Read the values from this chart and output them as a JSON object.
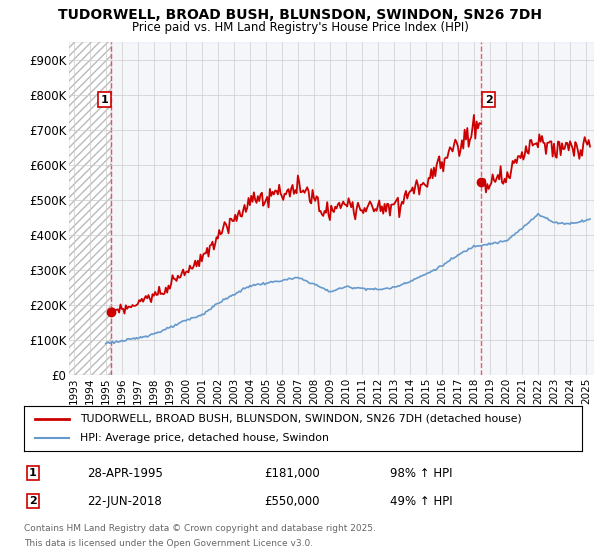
{
  "title1": "TUDORWELL, BROAD BUSH, BLUNSDON, SWINDON, SN26 7DH",
  "title2": "Price paid vs. HM Land Registry's House Price Index (HPI)",
  "ylim": [
    0,
    950000
  ],
  "yticks": [
    0,
    100000,
    200000,
    300000,
    400000,
    500000,
    600000,
    700000,
    800000,
    900000
  ],
  "ytick_labels": [
    "£0",
    "£100K",
    "£200K",
    "£300K",
    "£400K",
    "£500K",
    "£600K",
    "£700K",
    "£800K",
    "£900K"
  ],
  "xlim_start": 1992.7,
  "xlim_end": 2025.5,
  "xticks": [
    1993,
    1994,
    1995,
    1996,
    1997,
    1998,
    1999,
    2000,
    2001,
    2002,
    2003,
    2004,
    2005,
    2006,
    2007,
    2008,
    2009,
    2010,
    2011,
    2012,
    2013,
    2014,
    2015,
    2016,
    2017,
    2018,
    2019,
    2020,
    2021,
    2022,
    2023,
    2024,
    2025
  ],
  "marker1_x": 1995.32,
  "marker1_y": 181000,
  "marker2_x": 2018.47,
  "marker2_y": 550000,
  "house_color": "#cc0000",
  "hpi_color": "#6699cc",
  "vline_color": "#ee3333",
  "grid_color": "#cccccc",
  "legend_label1": "TUDORWELL, BROAD BUSH, BLUNSDON, SWINDON, SN26 7DH (detached house)",
  "legend_label2": "HPI: Average price, detached house, Swindon",
  "marker1_date": "28-APR-1995",
  "marker1_price": "£181,000",
  "marker1_hpi": "98% ↑ HPI",
  "marker2_date": "22-JUN-2018",
  "marker2_price": "£550,000",
  "marker2_hpi": "49% ↑ HPI",
  "footer1": "Contains HM Land Registry data © Crown copyright and database right 2025.",
  "footer2": "This data is licensed under the Open Government Licence v3.0."
}
